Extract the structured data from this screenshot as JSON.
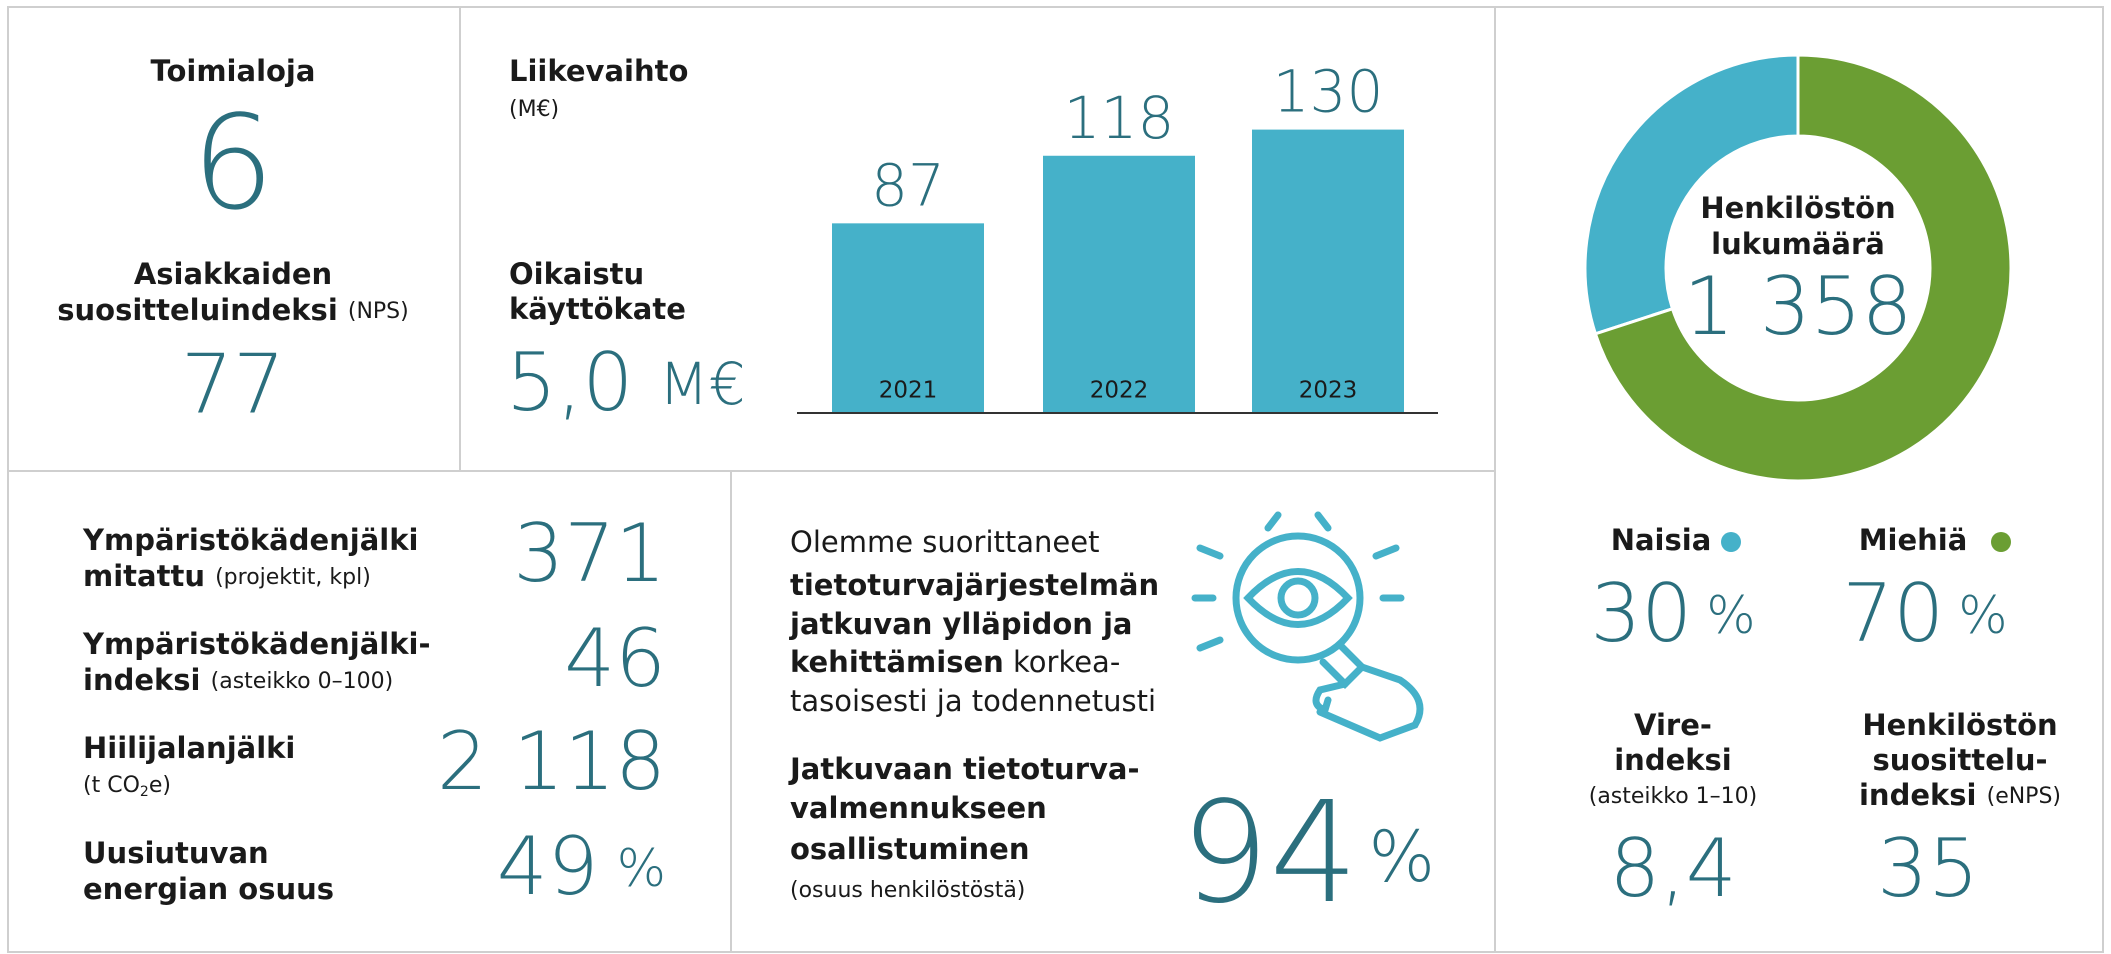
{
  "toimialoja": {
    "label": "Toimialoja",
    "value": 6
  },
  "nps": {
    "label_lines": [
      "Asiakkaiden",
      "suositteluindeksi"
    ],
    "note": "(NPS)",
    "value": 77
  },
  "revenue_chart": {
    "type": "bar",
    "title": "Liikevaihto",
    "unit": "(M€)",
    "categories": [
      "2021",
      "2022",
      "2023"
    ],
    "values": [
      87,
      118,
      130
    ],
    "color": "#45b1c9"
  },
  "ebitda": {
    "label_lines": [
      "Oikaistu",
      "käyttökate"
    ],
    "value": "5,0",
    "unit": "M€"
  },
  "headcount": {
    "type": "pie",
    "title_lines": [
      "Henkilöstön",
      "lukumäärä"
    ],
    "total": "1 358",
    "categories": [
      "Naisia",
      "Miehiä"
    ],
    "values": [
      30,
      70
    ],
    "unit": "%",
    "colors": [
      "#45b1c9",
      "#6b9e33"
    ]
  },
  "vire": {
    "label_lines": [
      "Vire-",
      "indeksi"
    ],
    "note": "(asteikko 1–10)",
    "value": "8,4"
  },
  "enps": {
    "label_lines": [
      "Henkilöstön",
      "suosittelu-",
      "indeksi"
    ],
    "note": "(eNPS)",
    "value": 35
  },
  "environment": [
    {
      "label_lines": [
        "Ympäristökädenjälki",
        "mitattu"
      ],
      "note": "(projektit, kpl)",
      "value": 371
    },
    {
      "label_lines": [
        "Ympäristökädenjälki-",
        "indeksi"
      ],
      "note": "(asteikko 0–100)",
      "value": 46
    },
    {
      "label_lines": [
        "Hiilijalanjälki"
      ],
      "note_parts": [
        "(t CO",
        "2",
        "e)"
      ],
      "value": "2 118"
    },
    {
      "label_lines": [
        "Uusiutuvan",
        "energian osuus"
      ],
      "value": 49,
      "unit": "%"
    }
  ],
  "security": {
    "intro": [
      "Olemme suorittaneet",
      "tietoturvajärjestelmän",
      "jatkuvan ylläpidon ja",
      "kehittämisen",
      "korkea-",
      "tasoisesti ja todennetusti"
    ],
    "label_lines": [
      "Jatkuvaan tietoturva-",
      "valmennukseen",
      "osallistuminen"
    ],
    "note": "(osuus henkilöstöstä)",
    "value": 94,
    "unit": "%"
  }
}
